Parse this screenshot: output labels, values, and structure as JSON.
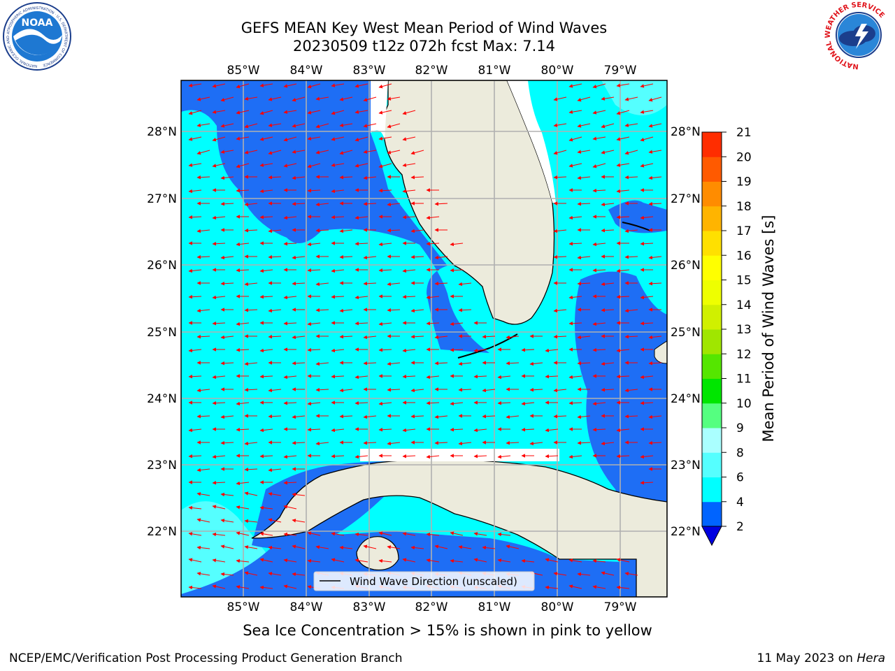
{
  "title": {
    "line1": "GEFS MEAN Key West Mean Period of Wind Waves",
    "line2": "20230509 t12z 072h fcst    Max: 7.14"
  },
  "map": {
    "lon_labels": [
      "85°W",
      "84°W",
      "83°W",
      "82°W",
      "81°W",
      "80°W",
      "79°W"
    ],
    "lat_labels": [
      "28°N",
      "27°N",
      "26°N",
      "25°N",
      "24°N",
      "23°N",
      "22°N"
    ],
    "legend_label": "Wind Wave Direction (unscaled)",
    "colors": {
      "land": "#ecebdc",
      "deep_blue": "#1e6ef5",
      "cyan": "#00ffff",
      "light_cyan": "#55ffff",
      "arrow": "#ff0000",
      "grid": "#b0b0b0"
    }
  },
  "colorbar": {
    "label": "Mean Period of Wind Waves [s]",
    "ticks": [
      "2",
      "4",
      "6",
      "8",
      "9",
      "10",
      "11",
      "12",
      "13",
      "14",
      "15",
      "16",
      "17",
      "18",
      "19",
      "20",
      "21"
    ],
    "colors": [
      "#0064ff",
      "#00ffff",
      "#55ffff",
      "#aaffff",
      "#55ff80",
      "#00e600",
      "#55e600",
      "#a0e600",
      "#d0f000",
      "#eeff00",
      "#ffff00",
      "#ffe000",
      "#ffb400",
      "#ff8c00",
      "#ff5a00",
      "#ff2d00",
      "#ff0000"
    ],
    "extend_color": "#0000e0"
  },
  "note": "Sea Ice Concentration > 15% is shown in pink to yellow",
  "footer": {
    "left": "NCEP/EMC/Verification Post Processing Product Generation Branch",
    "right_prefix": "11 May 2023 on ",
    "right_host": "Hera"
  },
  "logos": {
    "noaa_text": "NOAA",
    "noaa_ring": "NATIONAL OCEANIC AND ATMOSPHERIC ADMINISTRATION · U.S. DEPARTMENT OF COMMERCE",
    "nws_ring": "NATIONAL WEATHER SERVICE"
  }
}
